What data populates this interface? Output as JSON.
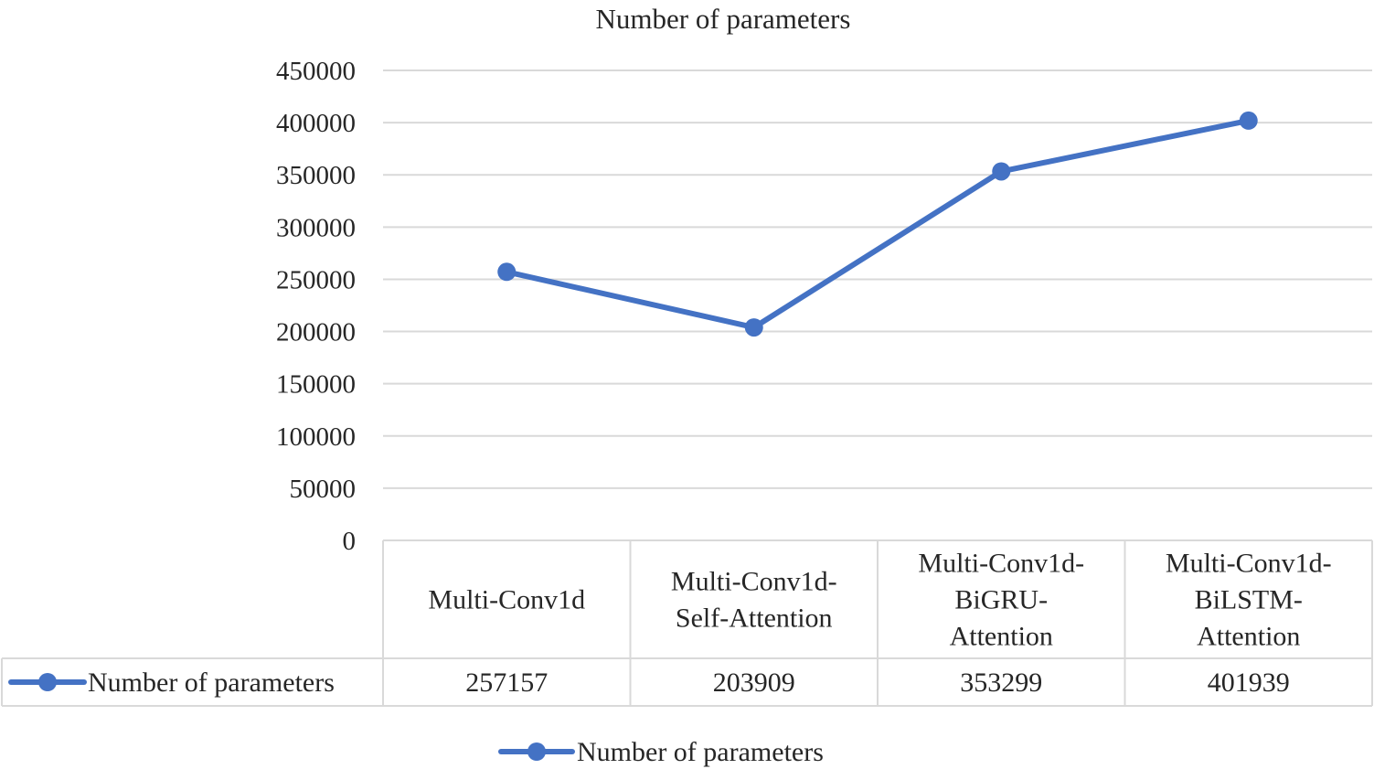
{
  "chart_data": {
    "type": "line",
    "title": "Number of parameters",
    "categories": [
      [
        "Multi-Conv1d"
      ],
      [
        "Multi-Conv1d-",
        "Self-Attention"
      ],
      [
        "Multi-Conv1d-",
        "BiGRU-",
        "Attention"
      ],
      [
        "Multi-Conv1d-",
        "BiLSTM-",
        "Attention"
      ]
    ],
    "series": [
      {
        "name": "Number of parameters",
        "values": [
          257157,
          203909,
          353299,
          401939
        ],
        "value_labels": [
          "257157",
          "203909",
          "353299",
          "401939"
        ],
        "color": "#4472C4"
      }
    ],
    "ylim": [
      0,
      450000
    ],
    "yticks": [
      "0",
      "50000",
      "100000",
      "150000",
      "200000",
      "250000",
      "300000",
      "350000",
      "400000",
      "450000"
    ],
    "xlabel": "",
    "ylabel": "",
    "grid": true,
    "data_table": true,
    "legend": "bottom-center",
    "legend_label": "Number of parameters",
    "gridline_color": "#d9d9d9",
    "table_border_color": "#d9d9d9"
  }
}
